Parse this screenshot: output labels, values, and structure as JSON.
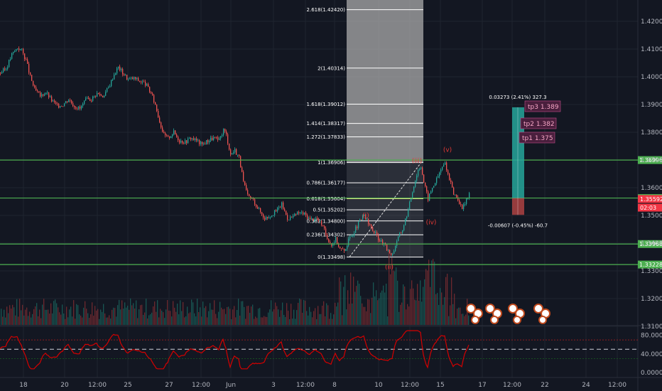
{
  "chart_data": {
    "type": "candlestick",
    "symbol_pair_axis": {
      "price_ticks": [
        "1.42000",
        "1.41000",
        "1.40000",
        "1.39000",
        "1.38000",
        "1.37000",
        "1.36000",
        "1.35000",
        "1.34000",
        "1.33000",
        "1.32000",
        "1.31000"
      ],
      "price_values": [
        1.42,
        1.41,
        1.4,
        1.39,
        1.38,
        1.37,
        1.36,
        1.35,
        1.34,
        1.33,
        1.32,
        1.31
      ],
      "ylim": [
        1.3068,
        1.4263
      ],
      "time_ticks": [
        "18",
        "20",
        "12:00",
        "25",
        "27",
        "12:00",
        "Jun",
        "3",
        "12:00",
        "8",
        "10",
        "12:00",
        "15",
        "17",
        "12:00",
        "22",
        "24",
        "12:00"
      ]
    },
    "price_series": {
      "name": "",
      "points": [
        [
          0,
          1.4015
        ],
        [
          8,
          1.403
        ],
        [
          16,
          1.408
        ],
        [
          24,
          1.4105
        ],
        [
          30,
          1.4095
        ],
        [
          36,
          1.406
        ],
        [
          42,
          1.4
        ],
        [
          48,
          1.3955
        ],
        [
          56,
          1.393
        ],
        [
          64,
          1.3945
        ],
        [
          72,
          1.3915
        ],
        [
          80,
          1.3895
        ],
        [
          88,
          1.39
        ],
        [
          96,
          1.392
        ],
        [
          104,
          1.3895
        ],
        [
          112,
          1.3885
        ],
        [
          120,
          1.3915
        ],
        [
          128,
          1.392
        ],
        [
          136,
          1.394
        ],
        [
          144,
          1.393
        ],
        [
          152,
          1.396
        ],
        [
          160,
          1.401
        ],
        [
          166,
          1.4035
        ],
        [
          172,
          1.4015
        ],
        [
          180,
          1.399
        ],
        [
          188,
          1.3995
        ],
        [
          196,
          1.3985
        ],
        [
          204,
          1.3975
        ],
        [
          212,
          1.394
        ],
        [
          218,
          1.39
        ],
        [
          224,
          1.384
        ],
        [
          230,
          1.379
        ],
        [
          236,
          1.378
        ],
        [
          244,
          1.38
        ],
        [
          252,
          1.377
        ],
        [
          260,
          1.3765
        ],
        [
          268,
          1.378
        ],
        [
          276,
          1.377
        ],
        [
          284,
          1.3755
        ],
        [
          292,
          1.377
        ],
        [
          300,
          1.378
        ],
        [
          308,
          1.377
        ],
        [
          314,
          1.381
        ],
        [
          318,
          1.379
        ],
        [
          324,
          1.372
        ],
        [
          330,
          1.3735
        ],
        [
          336,
          1.371
        ],
        [
          342,
          1.362
        ],
        [
          348,
          1.357
        ],
        [
          356,
          1.3555
        ],
        [
          364,
          1.352
        ],
        [
          372,
          1.349
        ],
        [
          380,
          1.35
        ],
        [
          388,
          1.3515
        ],
        [
          396,
          1.354
        ],
        [
          404,
          1.349
        ],
        [
          412,
          1.3495
        ],
        [
          420,
          1.351
        ],
        [
          428,
          1.3505
        ],
        [
          436,
          1.3485
        ],
        [
          444,
          1.349
        ],
        [
          452,
          1.347
        ],
        [
          460,
          1.342
        ],
        [
          466,
          1.3395
        ],
        [
          472,
          1.3415
        ],
        [
          478,
          1.338
        ],
        [
          484,
          1.3372
        ],
        [
          490,
          1.341
        ],
        [
          496,
          1.3435
        ],
        [
          504,
          1.347
        ],
        [
          512,
          1.35
        ],
        [
          518,
          1.347
        ],
        [
          526,
          1.344
        ],
        [
          534,
          1.341
        ],
        [
          540,
          1.3395
        ],
        [
          546,
          1.337
        ],
        [
          552,
          1.336
        ],
        [
          558,
          1.341
        ],
        [
          566,
          1.345
        ],
        [
          574,
          1.352
        ],
        [
          582,
          1.361
        ],
        [
          588,
          1.3665
        ],
        [
          592,
          1.368
        ],
        [
          596,
          1.362
        ],
        [
          602,
          1.356
        ],
        [
          608,
          1.36
        ],
        [
          614,
          1.363
        ],
        [
          620,
          1.3665
        ],
        [
          626,
          1.369
        ],
        [
          632,
          1.363
        ],
        [
          638,
          1.358
        ],
        [
          644,
          1.356
        ],
        [
          650,
          1.352
        ],
        [
          654,
          1.3545
        ],
        [
          660,
          1.3575
        ]
      ]
    },
    "horizontal_levels": [
      {
        "value": 1.36996,
        "label": "1.36996",
        "color": "#4caf50"
      },
      {
        "value": 1.35626,
        "label": "1.35626",
        "color": "#4caf50"
      },
      {
        "value": 1.33968,
        "label": "1.33968",
        "color": "#4caf50"
      },
      {
        "value": 1.33228,
        "label": "1.33228",
        "color": "#4caf50"
      }
    ],
    "price_tags": [
      {
        "value": 1.35592,
        "label": "1.35592",
        "color": "#f23645"
      },
      {
        "value": 1.3528,
        "label": "02:03",
        "color": "#f23645"
      }
    ],
    "fibonacci": [
      {
        "ratio": "2.618",
        "price": 1.4242,
        "label": "2.618(1.42420)"
      },
      {
        "ratio": "2",
        "price": 1.40314,
        "label": "2(1.40314)"
      },
      {
        "ratio": "1.618",
        "price": 1.39012,
        "label": "1.618(1.39012)"
      },
      {
        "ratio": "1.414",
        "price": 1.38317,
        "label": "1.414(1.38317)"
      },
      {
        "ratio": "1.272",
        "price": 1.37833,
        "label": "1.272(1.37833)"
      },
      {
        "ratio": "1",
        "price": 1.36906,
        "label": "1(1.36906)"
      },
      {
        "ratio": "0.786",
        "price": 1.36177,
        "label": "0.786(1.36177)"
      },
      {
        "ratio": "0.618",
        "price": 1.35604,
        "label": "0.618(1.35604)"
      },
      {
        "ratio": "0.5",
        "price": 1.35202,
        "label": "0.5(1.35202)"
      },
      {
        "ratio": "0.382",
        "price": 1.348,
        "label": "0.382(1.34800)"
      },
      {
        "ratio": "0.236",
        "price": 1.34302,
        "label": "0.236(1.34302)"
      },
      {
        "ratio": "0",
        "price": 1.33498,
        "label": "0(1.33498)"
      }
    ],
    "wave_labels": [
      {
        "text": "(i)",
        "price": 1.3492,
        "bar": 515
      },
      {
        "text": "(ii)",
        "price": 1.3307,
        "bar": 548
      },
      {
        "text": "(iii)",
        "price": 1.369,
        "bar": 587
      },
      {
        "text": "(iv)",
        "price": 1.3468,
        "bar": 607
      },
      {
        "text": "(v)",
        "price": 1.373,
        "bar": 630
      }
    ],
    "long_position": {
      "entry": 1.35626,
      "target": 1.389,
      "stop": 1.35019,
      "target_text": "0.03273 (2.41%) 327.3",
      "stop_text": "-0.00607 (-0.45%) -60.7"
    },
    "targets": [
      {
        "text": "tp3 1.389"
      },
      {
        "text": "tp2 1.382"
      },
      {
        "text": "tp1 1.375"
      }
    ],
    "rsi": {
      "ticks": [
        "80.00000",
        "40.00000",
        "0.00000"
      ],
      "tick_values": [
        80,
        40,
        0
      ],
      "upper": 70,
      "mid": 50,
      "lower": 30
    },
    "grid": true
  },
  "colors": {
    "background": "#131722",
    "grid": "#1f2430",
    "up": "#26a69a",
    "down": "#ef5350",
    "level": "#4caf50",
    "rsi_line": "#d50000"
  }
}
